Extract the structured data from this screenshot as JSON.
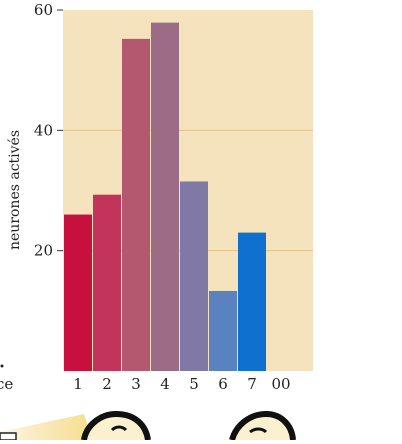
{
  "chart_data": {
    "type": "bar",
    "title": "",
    "xlabel": "",
    "ylabel": "neurones activés",
    "categories": [
      "1",
      "2",
      "3",
      "4",
      "5",
      "6",
      "7"
    ],
    "extra_x_tick": "00",
    "cut_off_left_label": "ce",
    "values": [
      26,
      29.3,
      55.2,
      57.9,
      31.5,
      13.3,
      23
    ],
    "ylim": [
      0,
      60
    ],
    "yticks": [
      "20",
      "40",
      "60"
    ],
    "grid": true,
    "legend": "none",
    "bar_colors": [
      "#c8103f",
      "#c2345a",
      "#b4586f",
      "#9c6b86",
      "#8078a5",
      "#5b82c0",
      "#1070d0"
    ],
    "plot_background": "#f4e3bd",
    "gridline_color": "#e3c48a"
  }
}
